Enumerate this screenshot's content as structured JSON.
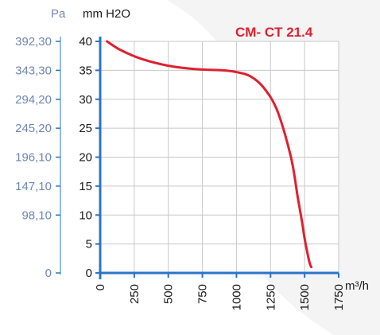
{
  "chart_data": {
    "type": "line",
    "title": "CM- CT 21.4",
    "xlabel": "m³/h",
    "ylabel": "mm H2O",
    "ylabel_secondary": "Pa",
    "x_ticks": [
      "0",
      "250",
      "500",
      "750",
      "1000",
      "1250",
      "1500",
      "1750"
    ],
    "y_ticks": [
      "0",
      "5",
      "10",
      "15",
      "20",
      "25",
      "30",
      "35",
      "40"
    ],
    "y2_ticks": [
      "0",
      "98,10",
      "147,10",
      "196,10",
      "245,20",
      "294,20",
      "343,30",
      "392,30"
    ],
    "xlim": [
      0,
      1750
    ],
    "ylim": [
      0,
      40
    ],
    "grid": true,
    "series": [
      {
        "x": [
          50,
          150,
          300,
          500,
          700,
          900,
          1000,
          1100,
          1200,
          1300,
          1400,
          1450,
          1480,
          1500,
          1520,
          1540,
          1550
        ],
        "values": [
          40,
          38.5,
          37,
          35.8,
          35.2,
          35,
          34.7,
          34,
          32,
          28,
          20,
          13,
          9,
          6,
          3.5,
          1.5,
          1
        ]
      }
    ],
    "colors": {
      "line": "#e0202e",
      "axis": "#2a74c8",
      "title": "#e0202e",
      "pa_labels": "#6f86b8"
    }
  }
}
